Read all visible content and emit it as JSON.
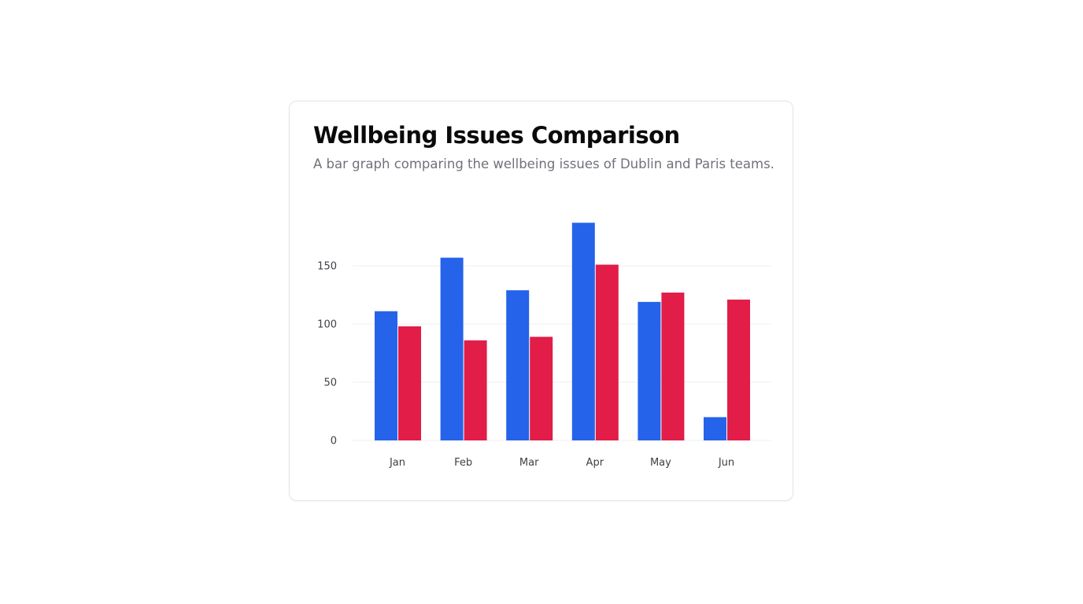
{
  "card": {
    "title": "Wellbeing Issues Comparison",
    "subtitle": "A bar graph comparing the wellbeing issues of Dublin and Paris teams."
  },
  "chart_data": {
    "type": "bar",
    "categories": [
      "Jan",
      "Feb",
      "Mar",
      "Apr",
      "May",
      "Jun"
    ],
    "series": [
      {
        "color": "#2563eb",
        "values": [
          111,
          157,
          129,
          187,
          119,
          20
        ]
      },
      {
        "color": "#e11d48",
        "values": [
          98,
          86,
          89,
          151,
          127,
          121
        ]
      }
    ],
    "y_ticks": [
      "0",
      "50",
      "100",
      "150"
    ],
    "y_tick_values": [
      0,
      50,
      100,
      150
    ],
    "ylim": [
      0,
      187
    ],
    "grid": true,
    "legend": "none"
  }
}
